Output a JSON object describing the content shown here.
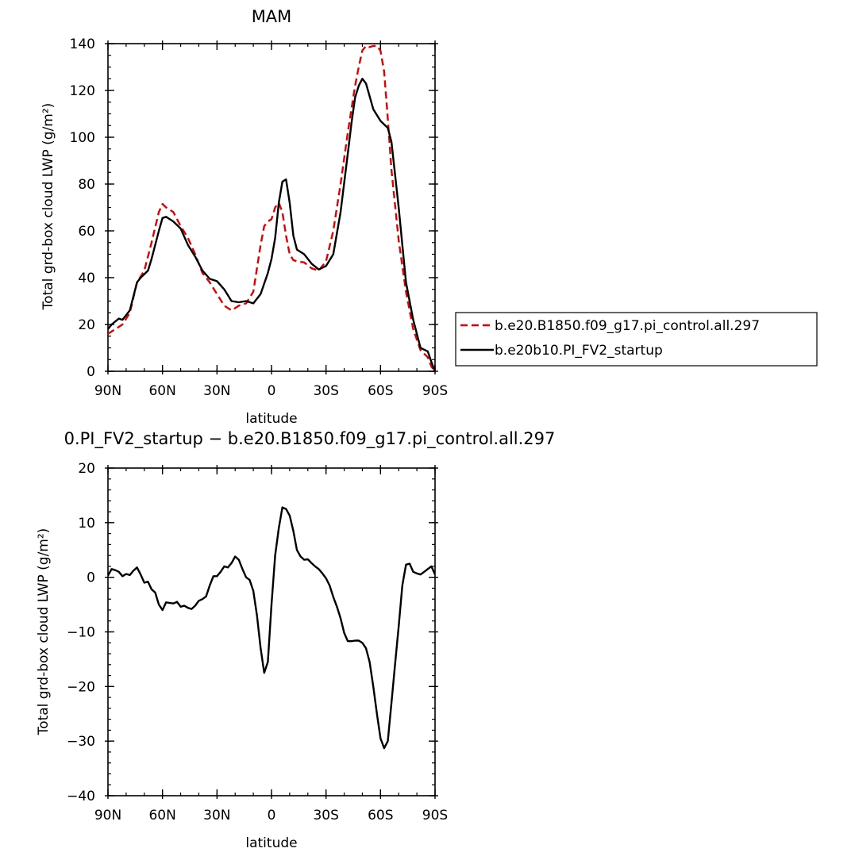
{
  "chart_data": [
    {
      "type": "line",
      "title": "MAM",
      "xlabel": "latitude",
      "ylabel": "Total grd-box cloud LWP (g/m²)",
      "xlim": [
        90,
        -90
      ],
      "ylim": [
        0,
        140
      ],
      "xticks": [
        {
          "value": 90,
          "label": "90N"
        },
        {
          "value": 60,
          "label": "60N"
        },
        {
          "value": 30,
          "label": "30N"
        },
        {
          "value": 0,
          "label": "0"
        },
        {
          "value": -30,
          "label": "30S"
        },
        {
          "value": -60,
          "label": "60S"
        },
        {
          "value": -90,
          "label": "90S"
        }
      ],
      "yticks": [
        0,
        20,
        40,
        60,
        80,
        100,
        120,
        140
      ],
      "legend_position": "right",
      "series": [
        {
          "name": "b.e20.B1850.f09_g17.pi_control.all.297",
          "color": "#e00000",
          "dash": true,
          "x": [
            90,
            86,
            82,
            78,
            74,
            70,
            66,
            62,
            60,
            58,
            54,
            50,
            46,
            42,
            38,
            34,
            30,
            26,
            22,
            18,
            14,
            10,
            6,
            4,
            2,
            0,
            -2,
            -4,
            -6,
            -8,
            -10,
            -12,
            -14,
            -18,
            -22,
            -26,
            -30,
            -34,
            -38,
            -42,
            -46,
            -48,
            -50,
            -52,
            -54,
            -56,
            -58,
            -60,
            -62,
            -64,
            -66,
            -70,
            -74,
            -78,
            -82,
            -86,
            -88,
            -90
          ],
          "y": [
            16,
            18,
            20,
            25,
            38,
            43,
            55,
            68,
            71.5,
            70,
            68,
            62,
            57,
            50,
            42,
            38,
            33,
            28,
            26,
            28,
            29,
            34,
            54,
            62,
            64,
            65,
            70,
            72,
            68,
            58,
            50,
            47.5,
            47,
            46.5,
            44,
            43,
            47,
            60,
            80,
            102,
            122,
            130,
            137,
            139,
            138.5,
            139,
            139,
            137,
            128,
            108,
            86,
            56,
            34,
            18,
            9,
            6,
            2,
            0
          ]
        },
        {
          "name": "b.e20b10.PI_FV2_startup",
          "color": "#000000",
          "dash": false,
          "x": [
            90,
            88,
            84,
            82,
            78,
            74,
            72,
            68,
            66,
            62,
            60,
            58,
            54,
            50,
            46,
            42,
            38,
            34,
            30,
            26,
            22,
            18,
            14,
            10,
            6,
            2,
            0,
            -2,
            -4,
            -6,
            -8,
            -10,
            -12,
            -14,
            -18,
            -22,
            -26,
            -30,
            -34,
            -38,
            -42,
            -44,
            -46,
            -48,
            -50,
            -52,
            -56,
            -60,
            -64,
            -66,
            -70,
            -74,
            -78,
            -82,
            -86,
            -88,
            -90
          ],
          "y": [
            18,
            20,
            22.5,
            22,
            26,
            38,
            40,
            43,
            48,
            60,
            65.5,
            66,
            64,
            61,
            54,
            49,
            43,
            39.5,
            38.5,
            35,
            30,
            29.5,
            30,
            29,
            33,
            42,
            48,
            57,
            72,
            81,
            82,
            72,
            58,
            52,
            50,
            46,
            43.5,
            45,
            50,
            68,
            93,
            106,
            117,
            122,
            125,
            123,
            112,
            107,
            104,
            98,
            70,
            38,
            22,
            10,
            8.5,
            4,
            0
          ]
        }
      ]
    },
    {
      "type": "line",
      "title": "0.PI_FV2_startup − b.e20.B1850.f09_g17.pi_control.all.297",
      "xlabel": "latitude",
      "ylabel": "Total grd-box cloud LWP (g/m²)",
      "xlim": [
        90,
        -90
      ],
      "ylim": [
        -40,
        20
      ],
      "xticks": [
        {
          "value": 90,
          "label": "90N"
        },
        {
          "value": 60,
          "label": "60N"
        },
        {
          "value": 30,
          "label": "30N"
        },
        {
          "value": 0,
          "label": "0"
        },
        {
          "value": -30,
          "label": "30S"
        },
        {
          "value": -60,
          "label": "60S"
        },
        {
          "value": -90,
          "label": "90S"
        }
      ],
      "yticks": [
        -40,
        -30,
        -20,
        -10,
        0,
        10,
        20
      ],
      "series": [
        {
          "color": "#000000",
          "dash": false,
          "x": [
            90,
            88,
            86,
            84,
            82,
            80,
            78,
            76,
            74,
            72,
            70,
            68,
            66,
            64,
            62,
            60,
            58,
            56,
            54,
            52,
            50,
            48,
            46,
            44,
            42,
            40,
            38,
            36,
            34,
            32,
            30,
            28,
            26,
            24,
            22,
            20,
            18,
            16,
            14,
            12,
            10,
            8,
            6,
            4,
            2,
            0,
            -2,
            -4,
            -6,
            -8,
            -10,
            -12,
            -14,
            -16,
            -18,
            -20,
            -22,
            -24,
            -26,
            -28,
            -30,
            -32,
            -34,
            -36,
            -38,
            -40,
            -42,
            -44,
            -46,
            -48,
            -50,
            -52,
            -54,
            -56,
            -58,
            -60,
            -62,
            -64,
            -66,
            -68,
            -70,
            -72,
            -74,
            -76,
            -78,
            -80,
            -82,
            -84,
            -86,
            -88,
            -90
          ],
          "y": [
            0.3,
            1.5,
            1.3,
            1,
            0.2,
            0.6,
            0.4,
            1.2,
            1.8,
            0.5,
            -1,
            -0.8,
            -2.2,
            -2.8,
            -5,
            -6,
            -4.6,
            -4.7,
            -4.8,
            -4.5,
            -5.4,
            -5.2,
            -5.6,
            -5.8,
            -5.2,
            -4.3,
            -4,
            -3.5,
            -1.5,
            0.2,
            0.2,
            1,
            2,
            1.8,
            2.6,
            3.8,
            3.2,
            1.5,
            0,
            -0.5,
            -2.5,
            -7,
            -13,
            -17.5,
            -15.5,
            -5,
            4,
            9,
            12.8,
            12.5,
            11.3,
            8.5,
            5,
            3.8,
            3.2,
            3.3,
            2.6,
            2,
            1.5,
            0.7,
            -0.2,
            -1.5,
            -3.6,
            -5.4,
            -7.5,
            -10.2,
            -11.7,
            -11.7,
            -11.6,
            -11.6,
            -12,
            -13,
            -15.5,
            -20,
            -25,
            -29.5,
            -31.3,
            -30,
            -23,
            -16,
            -9,
            -1.5,
            2.3,
            2.5,
            1,
            0.7,
            0.5,
            1,
            1.5,
            2,
            0.5
          ]
        }
      ]
    }
  ]
}
